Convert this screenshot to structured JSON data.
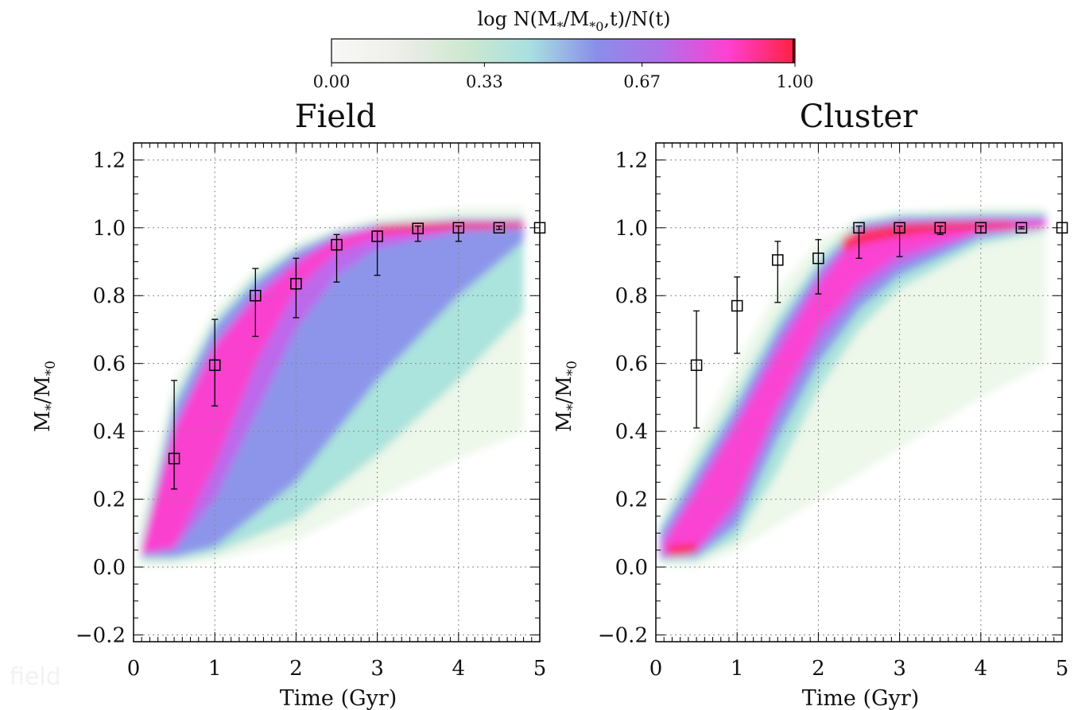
{
  "colorbar": {
    "label": "log N(M*/M*0,t)/N(t)",
    "label_main": "log N(M",
    "label_sub1": "*",
    "label_mid": "/M",
    "label_sub2": "*0",
    "label_end": ",t)/N(t)",
    "ticks": [
      "0.00",
      "0.33",
      "0.67",
      "1.00"
    ],
    "tick_values": [
      0.0,
      0.33,
      0.67,
      1.0
    ],
    "colors": [
      "#f8f8f6",
      "#eeeeea",
      "#cfe8d0",
      "#a8e0e0",
      "#8a8ee8",
      "#b070e8",
      "#ff40d0",
      "#ff2040"
    ]
  },
  "watermark": "field",
  "chart_data": [
    {
      "type": "scatter",
      "title": "Field",
      "xlabel": "Time (Gyr)",
      "ylabel": "M*/M*0",
      "ylabel_main": "M",
      "ylabel_sub1": "*",
      "ylabel_mid": "/M",
      "ylabel_sub2": "*0",
      "xlim": [
        0,
        5
      ],
      "ylim": [
        -0.22,
        1.25
      ],
      "xticks": [
        0,
        1,
        2,
        3,
        4,
        5
      ],
      "yticks": [
        -0.2,
        0.0,
        0.2,
        0.4,
        0.6,
        0.8,
        1.0,
        1.2
      ],
      "ytick_labels": [
        "−0.2",
        "0.0",
        "0.2",
        "0.4",
        "0.6",
        "0.8",
        "1.0",
        "1.2"
      ],
      "grid": true,
      "points": [
        {
          "x": 0.5,
          "y": 0.32,
          "ylo": 0.23,
          "yhi": 0.55
        },
        {
          "x": 1.0,
          "y": 0.595,
          "ylo": 0.475,
          "yhi": 0.73
        },
        {
          "x": 1.5,
          "y": 0.8,
          "ylo": 0.68,
          "yhi": 0.88
        },
        {
          "x": 2.0,
          "y": 0.835,
          "ylo": 0.735,
          "yhi": 0.91
        },
        {
          "x": 2.5,
          "y": 0.95,
          "ylo": 0.84,
          "yhi": 0.98
        },
        {
          "x": 3.0,
          "y": 0.975,
          "ylo": 0.86,
          "yhi": 0.99
        },
        {
          "x": 3.5,
          "y": 0.998,
          "ylo": 0.96,
          "yhi": 1.005
        },
        {
          "x": 4.0,
          "y": 1.0,
          "ylo": 0.96,
          "yhi": 1.005
        },
        {
          "x": 4.5,
          "y": 1.0,
          "ylo": 0.995,
          "yhi": 1.005
        },
        {
          "x": 5.0,
          "y": 1.0,
          "ylo": 1.0,
          "yhi": 1.0
        }
      ],
      "density_layers": [
        {
          "color": "#ecf6e8",
          "lower": [
            [
              0.05,
              0.0
            ],
            [
              0.5,
              0.0
            ],
            [
              1,
              0.02
            ],
            [
              2,
              0.08
            ],
            [
              3,
              0.2
            ],
            [
              4,
              0.32
            ],
            [
              4.8,
              0.4
            ]
          ],
          "upper": [
            [
              0.05,
              0.12
            ],
            [
              0.5,
              0.55
            ],
            [
              1,
              0.76
            ],
            [
              1.5,
              0.88
            ],
            [
              2,
              0.96
            ],
            [
              2.5,
              1.0
            ],
            [
              3,
              1.03
            ],
            [
              4,
              1.06
            ],
            [
              4.8,
              1.06
            ]
          ]
        },
        {
          "color": "#a6e2dc",
          "lower": [
            [
              0.1,
              0.02
            ],
            [
              0.5,
              0.02
            ],
            [
              1,
              0.04
            ],
            [
              2,
              0.14
            ],
            [
              3,
              0.33
            ],
            [
              4,
              0.55
            ],
            [
              4.8,
              0.75
            ]
          ],
          "upper": [
            [
              0.1,
              0.08
            ],
            [
              0.5,
              0.5
            ],
            [
              1,
              0.73
            ],
            [
              1.5,
              0.86
            ],
            [
              2,
              0.94
            ],
            [
              2.5,
              0.99
            ],
            [
              3,
              1.015
            ],
            [
              4,
              1.03
            ],
            [
              4.8,
              1.03
            ]
          ]
        },
        {
          "color": "#8a8eea",
          "lower": [
            [
              0.1,
              0.03
            ],
            [
              0.5,
              0.03
            ],
            [
              1,
              0.06
            ],
            [
              2,
              0.25
            ],
            [
              3,
              0.55
            ],
            [
              4,
              0.8
            ],
            [
              4.8,
              0.96
            ]
          ],
          "upper": [
            [
              0.1,
              0.06
            ],
            [
              0.5,
              0.47
            ],
            [
              1,
              0.71
            ],
            [
              1.5,
              0.84
            ],
            [
              2,
              0.93
            ],
            [
              2.5,
              0.985
            ],
            [
              3,
              1.01
            ],
            [
              4,
              1.025
            ],
            [
              4.8,
              1.025
            ]
          ]
        },
        {
          "color": "#c264ec",
          "lower": [
            [
              0.1,
              0.035
            ],
            [
              0.5,
              0.05
            ],
            [
              1,
              0.2
            ],
            [
              1.5,
              0.45
            ],
            [
              2,
              0.7
            ],
            [
              2.5,
              0.86
            ],
            [
              3,
              0.94
            ],
            [
              4,
              0.99
            ],
            [
              4.8,
              1.0
            ]
          ],
          "upper": [
            [
              0.1,
              0.05
            ],
            [
              0.5,
              0.42
            ],
            [
              1,
              0.66
            ],
            [
              1.5,
              0.81
            ],
            [
              2,
              0.91
            ],
            [
              2.5,
              0.975
            ],
            [
              3,
              1.005
            ],
            [
              4,
              1.02
            ],
            [
              4.8,
              1.02
            ]
          ]
        },
        {
          "color": "#ff3ccc",
          "lower": [
            [
              0.1,
              0.04
            ],
            [
              0.5,
              0.06
            ],
            [
              1,
              0.3
            ],
            [
              1.5,
              0.6
            ],
            [
              2,
              0.82
            ],
            [
              2.5,
              0.93
            ],
            [
              3,
              0.97
            ],
            [
              4,
              0.995
            ],
            [
              4.8,
              1.0
            ]
          ],
          "upper": [
            [
              0.1,
              0.05
            ],
            [
              0.5,
              0.4
            ],
            [
              1,
              0.65
            ],
            [
              1.5,
              0.79
            ],
            [
              2,
              0.89
            ],
            [
              2.5,
              0.97
            ],
            [
              3,
              1.0
            ],
            [
              4,
              1.015
            ],
            [
              4.8,
              1.015
            ]
          ]
        },
        {
          "color": "#ff2a4a",
          "lower": [
            [
              3.0,
              0.99
            ],
            [
              3.5,
              0.995
            ],
            [
              4,
              1.0
            ],
            [
              4.8,
              1.003
            ]
          ],
          "upper": [
            [
              3.0,
              1.005
            ],
            [
              3.5,
              1.012
            ],
            [
              4,
              1.015
            ],
            [
              4.8,
              1.015
            ]
          ]
        }
      ]
    },
    {
      "type": "scatter",
      "title": "Cluster",
      "xlabel": "Time (Gyr)",
      "ylabel": "M*/M*0",
      "ylabel_main": "M",
      "ylabel_sub1": "*",
      "ylabel_mid": "/M",
      "ylabel_sub2": "*0",
      "xlim": [
        0,
        5
      ],
      "ylim": [
        -0.22,
        1.25
      ],
      "xticks": [
        0,
        1,
        2,
        3,
        4,
        5
      ],
      "yticks": [
        -0.2,
        0.0,
        0.2,
        0.4,
        0.6,
        0.8,
        1.0,
        1.2
      ],
      "ytick_labels": [
        "−0.2",
        "0.0",
        "0.2",
        "0.4",
        "0.6",
        "0.8",
        "1.0",
        "1.2"
      ],
      "grid": true,
      "points": [
        {
          "x": 0.5,
          "y": 0.595,
          "ylo": 0.41,
          "yhi": 0.755
        },
        {
          "x": 1.0,
          "y": 0.77,
          "ylo": 0.63,
          "yhi": 0.855
        },
        {
          "x": 1.5,
          "y": 0.905,
          "ylo": 0.78,
          "yhi": 0.96
        },
        {
          "x": 2.0,
          "y": 0.91,
          "ylo": 0.805,
          "yhi": 0.965
        },
        {
          "x": 2.5,
          "y": 1.0,
          "ylo": 0.91,
          "yhi": 1.005
        },
        {
          "x": 3.0,
          "y": 1.0,
          "ylo": 0.915,
          "yhi": 1.005
        },
        {
          "x": 3.5,
          "y": 1.0,
          "ylo": 0.98,
          "yhi": 1.005
        },
        {
          "x": 4.0,
          "y": 1.0,
          "ylo": 0.985,
          "yhi": 1.005
        },
        {
          "x": 4.5,
          "y": 1.0,
          "ylo": 0.997,
          "yhi": 1.003
        },
        {
          "x": 5.0,
          "y": 1.0,
          "ylo": 1.0,
          "yhi": 1.0
        }
      ],
      "density_layers": [
        {
          "color": "#ecf6e8",
          "lower": [
            [
              0.05,
              0.0
            ],
            [
              0.5,
              0.0
            ],
            [
              1,
              0.05
            ],
            [
              2,
              0.2
            ],
            [
              3,
              0.35
            ],
            [
              4,
              0.5
            ],
            [
              4.8,
              0.6
            ]
          ],
          "upper": [
            [
              0.05,
              0.15
            ],
            [
              0.5,
              0.38
            ],
            [
              1,
              0.6
            ],
            [
              1.5,
              0.82
            ],
            [
              2,
              0.96
            ],
            [
              2.5,
              1.03
            ],
            [
              3,
              1.05
            ],
            [
              4,
              1.06
            ],
            [
              4.8,
              1.06
            ]
          ]
        },
        {
          "color": "#a6e2dc",
          "lower": [
            [
              0.05,
              0.02
            ],
            [
              0.5,
              0.02
            ],
            [
              1,
              0.08
            ],
            [
              1.5,
              0.28
            ],
            [
              2,
              0.52
            ],
            [
              2.5,
              0.7
            ],
            [
              3,
              0.82
            ],
            [
              4,
              0.95
            ],
            [
              4.8,
              0.99
            ]
          ],
          "upper": [
            [
              0.05,
              0.12
            ],
            [
              0.5,
              0.32
            ],
            [
              1,
              0.52
            ],
            [
              1.5,
              0.74
            ],
            [
              2,
              0.91
            ],
            [
              2.5,
              1.02
            ],
            [
              3,
              1.04
            ],
            [
              4,
              1.045
            ],
            [
              4.8,
              1.045
            ]
          ]
        },
        {
          "color": "#8a8eea",
          "lower": [
            [
              0.05,
              0.025
            ],
            [
              0.5,
              0.03
            ],
            [
              1,
              0.12
            ],
            [
              1.5,
              0.38
            ],
            [
              2,
              0.6
            ],
            [
              2.5,
              0.76
            ],
            [
              3,
              0.86
            ],
            [
              4,
              0.97
            ],
            [
              4.8,
              1.0
            ]
          ],
          "upper": [
            [
              0.05,
              0.1
            ],
            [
              0.5,
              0.28
            ],
            [
              1,
              0.48
            ],
            [
              1.5,
              0.7
            ],
            [
              2,
              0.88
            ],
            [
              2.5,
              1.01
            ],
            [
              3,
              1.03
            ],
            [
              4,
              1.035
            ],
            [
              4.8,
              1.035
            ]
          ]
        },
        {
          "color": "#c264ec",
          "lower": [
            [
              0.08,
              0.03
            ],
            [
              0.5,
              0.04
            ],
            [
              1,
              0.16
            ],
            [
              1.5,
              0.44
            ],
            [
              2,
              0.65
            ],
            [
              2.5,
              0.8
            ],
            [
              3,
              0.89
            ],
            [
              4,
              0.985
            ],
            [
              4.8,
              1.0
            ]
          ],
          "upper": [
            [
              0.08,
              0.08
            ],
            [
              0.5,
              0.25
            ],
            [
              1,
              0.45
            ],
            [
              1.5,
              0.67
            ],
            [
              2,
              0.86
            ],
            [
              2.5,
              1.0
            ],
            [
              3,
              1.02
            ],
            [
              4,
              1.025
            ],
            [
              4.8,
              1.025
            ]
          ]
        },
        {
          "color": "#ff40d0",
          "lower": [
            [
              0.1,
              0.035
            ],
            [
              0.5,
              0.05
            ],
            [
              1,
              0.2
            ],
            [
              1.5,
              0.48
            ],
            [
              2,
              0.7
            ],
            [
              2.5,
              0.84
            ],
            [
              3,
              0.92
            ],
            [
              4,
              0.99
            ],
            [
              4.8,
              1.0
            ]
          ],
          "upper": [
            [
              0.1,
              0.07
            ],
            [
              0.5,
              0.22
            ],
            [
              1,
              0.42
            ],
            [
              1.5,
              0.63
            ],
            [
              2,
              0.83
            ],
            [
              2.5,
              0.985
            ],
            [
              3,
              1.01
            ],
            [
              4,
              1.02
            ],
            [
              4.8,
              1.02
            ]
          ]
        },
        {
          "color": "#ff2a4a",
          "lower": [
            [
              0.15,
              0.035
            ],
            [
              0.3,
              0.035
            ],
            [
              0.5,
              0.045
            ]
          ],
          "upper": [
            [
              0.15,
              0.06
            ],
            [
              0.3,
              0.065
            ],
            [
              0.5,
              0.07
            ]
          ]
        },
        {
          "color": "#ff2a4a",
          "lower": [
            [
              2.3,
              0.93
            ],
            [
              2.5,
              0.95
            ],
            [
              3,
              0.975
            ],
            [
              3.5,
              0.99
            ],
            [
              4,
              0.997
            ],
            [
              4.4,
              1.0
            ]
          ],
          "upper": [
            [
              2.3,
              0.97
            ],
            [
              2.5,
              0.99
            ],
            [
              3,
              1.01
            ],
            [
              3.5,
              1.015
            ],
            [
              4,
              1.015
            ],
            [
              4.4,
              1.015
            ]
          ]
        }
      ]
    }
  ]
}
